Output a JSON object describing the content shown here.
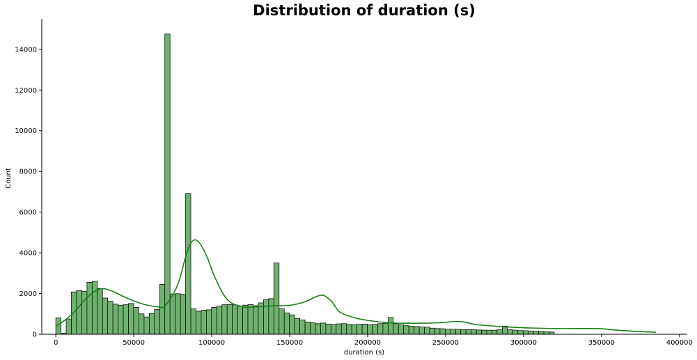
{
  "chart_data": {
    "type": "bar",
    "title": "Distribution of duration (s)",
    "xlabel": "duration (s)",
    "ylabel": "Count",
    "xlim": [
      -9000,
      405000
    ],
    "ylim": [
      0,
      15500
    ],
    "x_ticks": [
      0,
      50000,
      100000,
      150000,
      200000,
      250000,
      300000,
      350000,
      400000
    ],
    "y_ticks": [
      0,
      2000,
      4000,
      6000,
      8000,
      10000,
      12000,
      14000
    ],
    "x_tick_labels": [
      "0",
      "50000",
      "100000",
      "150000",
      "200000",
      "250000",
      "300000",
      "350000",
      "400000"
    ],
    "y_tick_labels": [
      "0",
      "2000",
      "4000",
      "6000",
      "8000",
      "10000",
      "12000",
      "14000"
    ],
    "bin_start": 0,
    "bin_width": 3330,
    "series": [
      {
        "values": [
          800,
          50,
          750,
          2080,
          2150,
          2100,
          2550,
          2600,
          2250,
          1780,
          1620,
          1480,
          1430,
          1450,
          1510,
          1320,
          1000,
          850,
          1020,
          1220,
          2450,
          14750,
          1980,
          1990,
          1960,
          6920,
          1250,
          1130,
          1180,
          1200,
          1320,
          1380,
          1450,
          1460,
          1440,
          1370,
          1430,
          1460,
          1400,
          1540,
          1700,
          1750,
          3500,
          1250,
          1050,
          950,
          780,
          700,
          600,
          560,
          520,
          550,
          500,
          480,
          510,
          520,
          480,
          470,
          490,
          500,
          460,
          480,
          520,
          540,
          820,
          520,
          460,
          420,
          400,
          380,
          360,
          350,
          300,
          280,
          270,
          250,
          250,
          240,
          230,
          230,
          220,
          210,
          200,
          200,
          200,
          220,
          400,
          220,
          200,
          180,
          170,
          160,
          150,
          140,
          120,
          110
        ]
      }
    ],
    "kde": {
      "x": [
        0,
        10000,
        20000,
        28000,
        35000,
        45000,
        55000,
        65000,
        70000,
        78000,
        84000,
        88000,
        92000,
        97000,
        102000,
        110000,
        120000,
        130000,
        140000,
        150000,
        160000,
        167000,
        172000,
        177000,
        182000,
        190000,
        200000,
        215000,
        230000,
        245000,
        255000,
        262000,
        270000,
        285000,
        300000,
        320000,
        340000,
        350000,
        360000,
        375000,
        385000
      ],
      "y": [
        380,
        950,
        1800,
        2220,
        2150,
        1800,
        1500,
        1350,
        1400,
        2400,
        4000,
        4600,
        4500,
        3800,
        2800,
        1700,
        1350,
        1350,
        1400,
        1420,
        1600,
        1850,
        1900,
        1600,
        1100,
        850,
        680,
        560,
        540,
        560,
        620,
        600,
        470,
        380,
        320,
        280,
        280,
        270,
        200,
        130,
        100
      ]
    },
    "bar_color": "#6eb26e",
    "bar_edge_color": "#111111",
    "kde_color": "#1a7f1a",
    "grid": false,
    "legend": "none"
  }
}
